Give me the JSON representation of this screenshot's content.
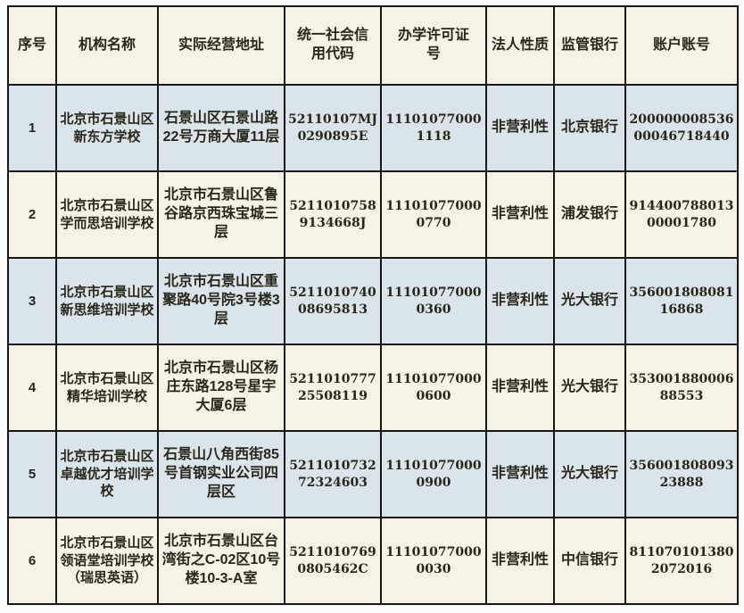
{
  "document": {
    "type": "registered-training-institutions-table",
    "district": "北京市石景山区"
  },
  "colors": {
    "row_alt_blue": "#d9e5ea",
    "row_cream": "#f6f3e6",
    "border": "#161616",
    "text": "#28261a",
    "page_background": "#fbfbf9"
  },
  "table": {
    "headers": [
      "序号",
      "机构名称",
      "实际经营地址",
      "统一社会信用代码",
      "办学许可证号",
      "法人性质",
      "监管银行",
      "账户账号"
    ],
    "rows": [
      [
        "1",
        "北京市石景山区新东方学校",
        "石景山区石景山路22号万商大厦11层",
        "52110107MJ0290895E",
        "111010770001118",
        "非营利性",
        "北京银行",
        "20000000853600046718440"
      ],
      [
        "2",
        "北京市石景山区学而思培训学校",
        "北京市石景山区鲁谷路京西珠宝城三层",
        "52110107589134668J",
        "111010770000770",
        "非营利性",
        "浦发银行",
        "91440078801300001780"
      ],
      [
        "3",
        "北京市石景山区新思维培训学校",
        "北京市石景山区重聚路40号院3号楼3层",
        "521101074008695813",
        "111010770000360",
        "非营利性",
        "光大银行",
        "35600180808116868"
      ],
      [
        "4",
        "北京市石景山区精华培训学校",
        "北京市石景山区杨庄东路128号星宇大厦6层",
        "521101077725508119",
        "111010770000600",
        "非营利性",
        "光大银行",
        "35300188000688553"
      ],
      [
        "5",
        "北京市石景山区卓越优才培训学校",
        "石景山八角西街85号首钢实业公司四层区",
        "521101073272324603",
        "111010770000900",
        "非营利性",
        "光大银行",
        "35600180809323888"
      ],
      [
        "6",
        "北京市石景山区领语堂培训学校（瑞思英语）",
        "北京市石景山区台湾街之C-02区10号楼10-3-A室",
        "52110107690805462C",
        "111010770000030",
        "非营利性",
        "中信银行",
        "8110701013802072016"
      ]
    ]
  }
}
